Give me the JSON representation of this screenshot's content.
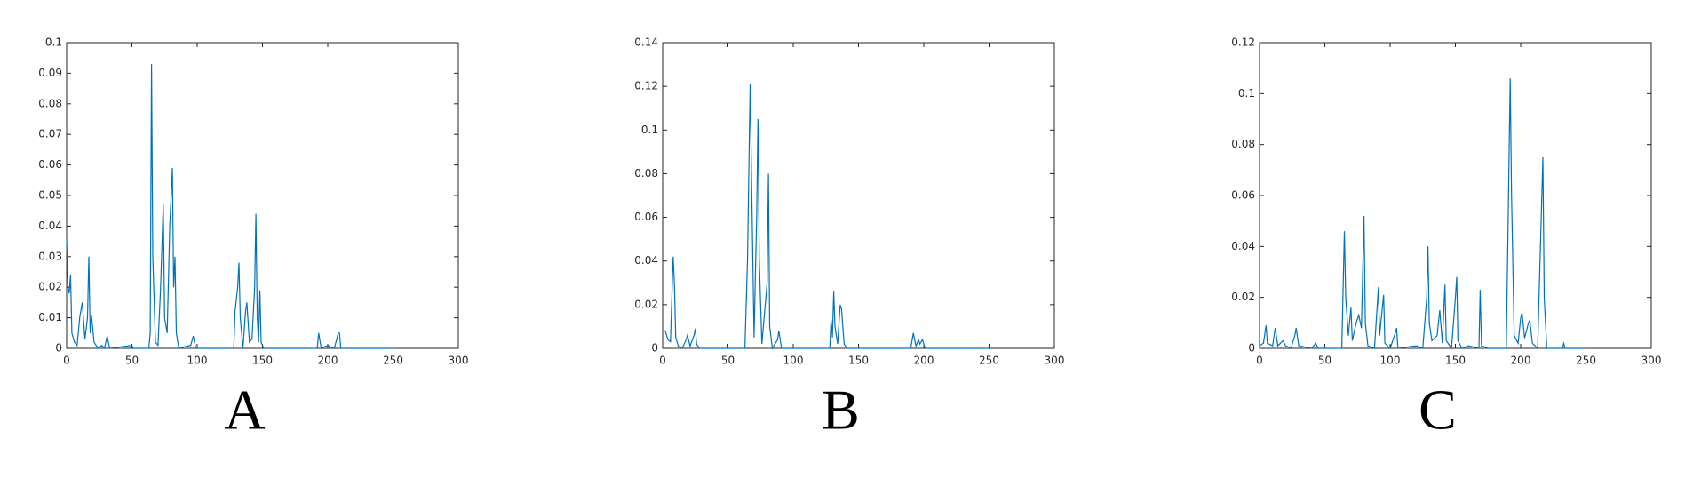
{
  "chart_data": [
    {
      "type": "line",
      "label": "A",
      "color": "#0072bd",
      "xlim": [
        0,
        300
      ],
      "xticks": [
        0,
        50,
        100,
        150,
        200,
        250,
        300
      ],
      "ylim": [
        0,
        0.1
      ],
      "yticks": [
        0,
        0.01,
        0.02,
        0.03,
        0.04,
        0.05,
        0.06,
        0.07,
        0.08,
        0.09,
        0.1
      ],
      "x": [
        0,
        1,
        2,
        3,
        4,
        6,
        8,
        10,
        12,
        14,
        16,
        17,
        18,
        19,
        21,
        24,
        27,
        29,
        31,
        33,
        50,
        51,
        63,
        64,
        65,
        66,
        68,
        70,
        72,
        74,
        75,
        77,
        79,
        81,
        82,
        83,
        84,
        86,
        95,
        97,
        99,
        128,
        129,
        131,
        132,
        133,
        135,
        137,
        138,
        140,
        142,
        144,
        145,
        146,
        147,
        148,
        149,
        151,
        192,
        193,
        195,
        200,
        205,
        208,
        209,
        210,
        252
      ],
      "values": [
        0.036,
        0.02,
        0.018,
        0.024,
        0.005,
        0.002,
        0.001,
        0.01,
        0.015,
        0.003,
        0.01,
        0.03,
        0.005,
        0.011,
        0.002,
        0,
        0.001,
        0,
        0.004,
        0,
        0.001,
        0,
        0,
        0.005,
        0.093,
        0.03,
        0.002,
        0.001,
        0.02,
        0.047,
        0.01,
        0.005,
        0.04,
        0.059,
        0.02,
        0.03,
        0.005,
        0,
        0.001,
        0.004,
        0,
        0,
        0.012,
        0.02,
        0.028,
        0.01,
        0,
        0.012,
        0.015,
        0.002,
        0.003,
        0.02,
        0.044,
        0.01,
        0.002,
        0.019,
        0.002,
        0,
        0,
        0.005,
        0,
        0.001,
        0,
        0.005,
        0.005,
        0,
        0
      ]
    },
    {
      "type": "line",
      "label": "B",
      "color": "#0072bd",
      "xlim": [
        0,
        300
      ],
      "xticks": [
        0,
        50,
        100,
        150,
        200,
        250,
        300
      ],
      "ylim": [
        0,
        0.14
      ],
      "yticks": [
        0,
        0.02,
        0.04,
        0.06,
        0.08,
        0.1,
        0.12,
        0.14
      ],
      "x": [
        0,
        2,
        4,
        6,
        8,
        9,
        10,
        12,
        15,
        18,
        19,
        21,
        24,
        25,
        26,
        28,
        63,
        65,
        67,
        68,
        70,
        72,
        73,
        74,
        76,
        80,
        81,
        82,
        84,
        88,
        89,
        91,
        128,
        129,
        130,
        131,
        132,
        134,
        136,
        137,
        139,
        141,
        190,
        192,
        194,
        196,
        197,
        199,
        201,
        250
      ],
      "values": [
        0.008,
        0.008,
        0.004,
        0.003,
        0.042,
        0.03,
        0.005,
        0.001,
        0,
        0.004,
        0.006,
        0.001,
        0.006,
        0.009,
        0.002,
        0,
        0,
        0.04,
        0.121,
        0.08,
        0.005,
        0.06,
        0.105,
        0.04,
        0.002,
        0.03,
        0.08,
        0.01,
        0,
        0.004,
        0.008,
        0,
        0,
        0.013,
        0.005,
        0.026,
        0.01,
        0.002,
        0.02,
        0.018,
        0.002,
        0,
        0,
        0.007,
        0.001,
        0.004,
        0.002,
        0.004,
        0,
        0
      ]
    },
    {
      "type": "line",
      "label": "C",
      "color": "#0072bd",
      "xlim": [
        0,
        300
      ],
      "xticks": [
        0,
        50,
        100,
        150,
        200,
        250,
        300
      ],
      "ylim": [
        0,
        0.12
      ],
      "yticks": [
        0,
        0.02,
        0.04,
        0.06,
        0.08,
        0.1,
        0.12
      ],
      "x": [
        0,
        3,
        5,
        6,
        10,
        12,
        14,
        18,
        20,
        24,
        27,
        28,
        30,
        40,
        43,
        45,
        63,
        65,
        66,
        68,
        70,
        71,
        74,
        76,
        78,
        80,
        81,
        83,
        88,
        91,
        92,
        95,
        96,
        100,
        104,
        105,
        106,
        120,
        125,
        128,
        129,
        130,
        132,
        136,
        138,
        140,
        142,
        143,
        147,
        150,
        151,
        152,
        155,
        160,
        168,
        169,
        170,
        175,
        189,
        192,
        193,
        195,
        198,
        200,
        201,
        203,
        206,
        207,
        209,
        213,
        217,
        218,
        220,
        232,
        233,
        234,
        250
      ],
      "values": [
        0.001,
        0.002,
        0.009,
        0.002,
        0.001,
        0.008,
        0.001,
        0.003,
        0.001,
        0,
        0.005,
        0.008,
        0.001,
        0,
        0.002,
        0,
        0,
        0.046,
        0.02,
        0.005,
        0.016,
        0.003,
        0.01,
        0.013,
        0.008,
        0.052,
        0.01,
        0.001,
        0,
        0.024,
        0.005,
        0.021,
        0.002,
        0,
        0.006,
        0.008,
        0,
        0.001,
        0,
        0.02,
        0.04,
        0.01,
        0.003,
        0.005,
        0.015,
        0.002,
        0.025,
        0.003,
        0,
        0.02,
        0.028,
        0.003,
        0,
        0.001,
        0,
        0.023,
        0.001,
        0,
        0,
        0.106,
        0.06,
        0.005,
        0.002,
        0.012,
        0.014,
        0.004,
        0.01,
        0.011,
        0.002,
        0,
        0.075,
        0.02,
        0,
        0,
        0.002,
        0,
        0
      ]
    }
  ]
}
